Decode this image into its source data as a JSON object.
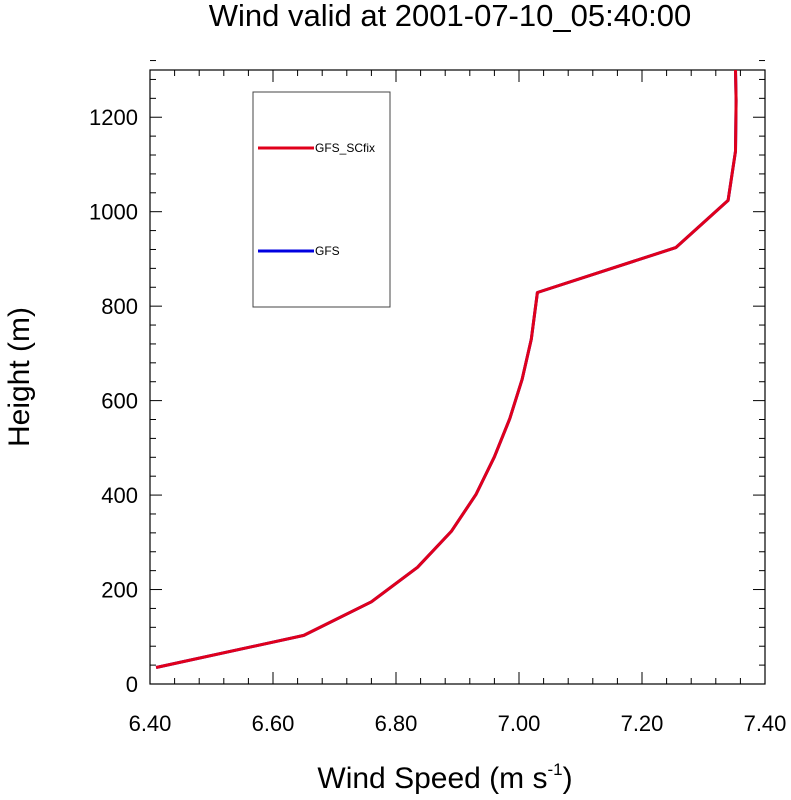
{
  "chart_data": {
    "type": "line",
    "title": "Wind valid at 2001-07-10_05:40:00",
    "xlabel": "Wind Speed (m s",
    "xlabel_superscript": "-1",
    "xlabel_suffix": ")",
    "ylabel": "Height (m)",
    "xlim": [
      6.4,
      7.4
    ],
    "ylim": [
      0,
      1300
    ],
    "xticks": [
      6.4,
      6.6,
      6.8,
      7.0,
      7.2,
      7.4
    ],
    "xtick_labels": [
      "6.40",
      "6.60",
      "6.80",
      "7.00",
      "7.20",
      "7.40"
    ],
    "yticks": [
      0,
      200,
      400,
      600,
      800,
      1000,
      1200
    ],
    "ytick_labels": [
      "0",
      "200",
      "400",
      "600",
      "800",
      "1000",
      "1200"
    ],
    "grid": false,
    "legend_position": "top-left inside plot",
    "series": [
      {
        "name": "GFS_SCfix",
        "color": "#e0001b",
        "x": [
          6.41,
          6.65,
          6.76,
          6.835,
          6.89,
          6.93,
          6.96,
          6.985,
          7.005,
          7.02,
          7.03,
          7.255,
          7.34,
          7.352,
          7.353,
          7.352
        ],
        "y": [
          35,
          103,
          174,
          247,
          323,
          401,
          481,
          562,
          645,
          730,
          829,
          924,
          1024,
          1128,
          1235,
          1300
        ]
      },
      {
        "name": "GFS",
        "color": "#0000e0",
        "x": [
          6.41,
          6.65,
          6.76,
          6.835,
          6.89,
          6.93,
          6.96,
          6.985,
          7.005,
          7.02,
          7.03,
          7.255,
          7.34,
          7.352,
          7.353,
          7.352
        ],
        "y": [
          35,
          103,
          174,
          247,
          323,
          401,
          481,
          562,
          645,
          730,
          829,
          924,
          1024,
          1128,
          1235,
          1300
        ]
      }
    ]
  }
}
